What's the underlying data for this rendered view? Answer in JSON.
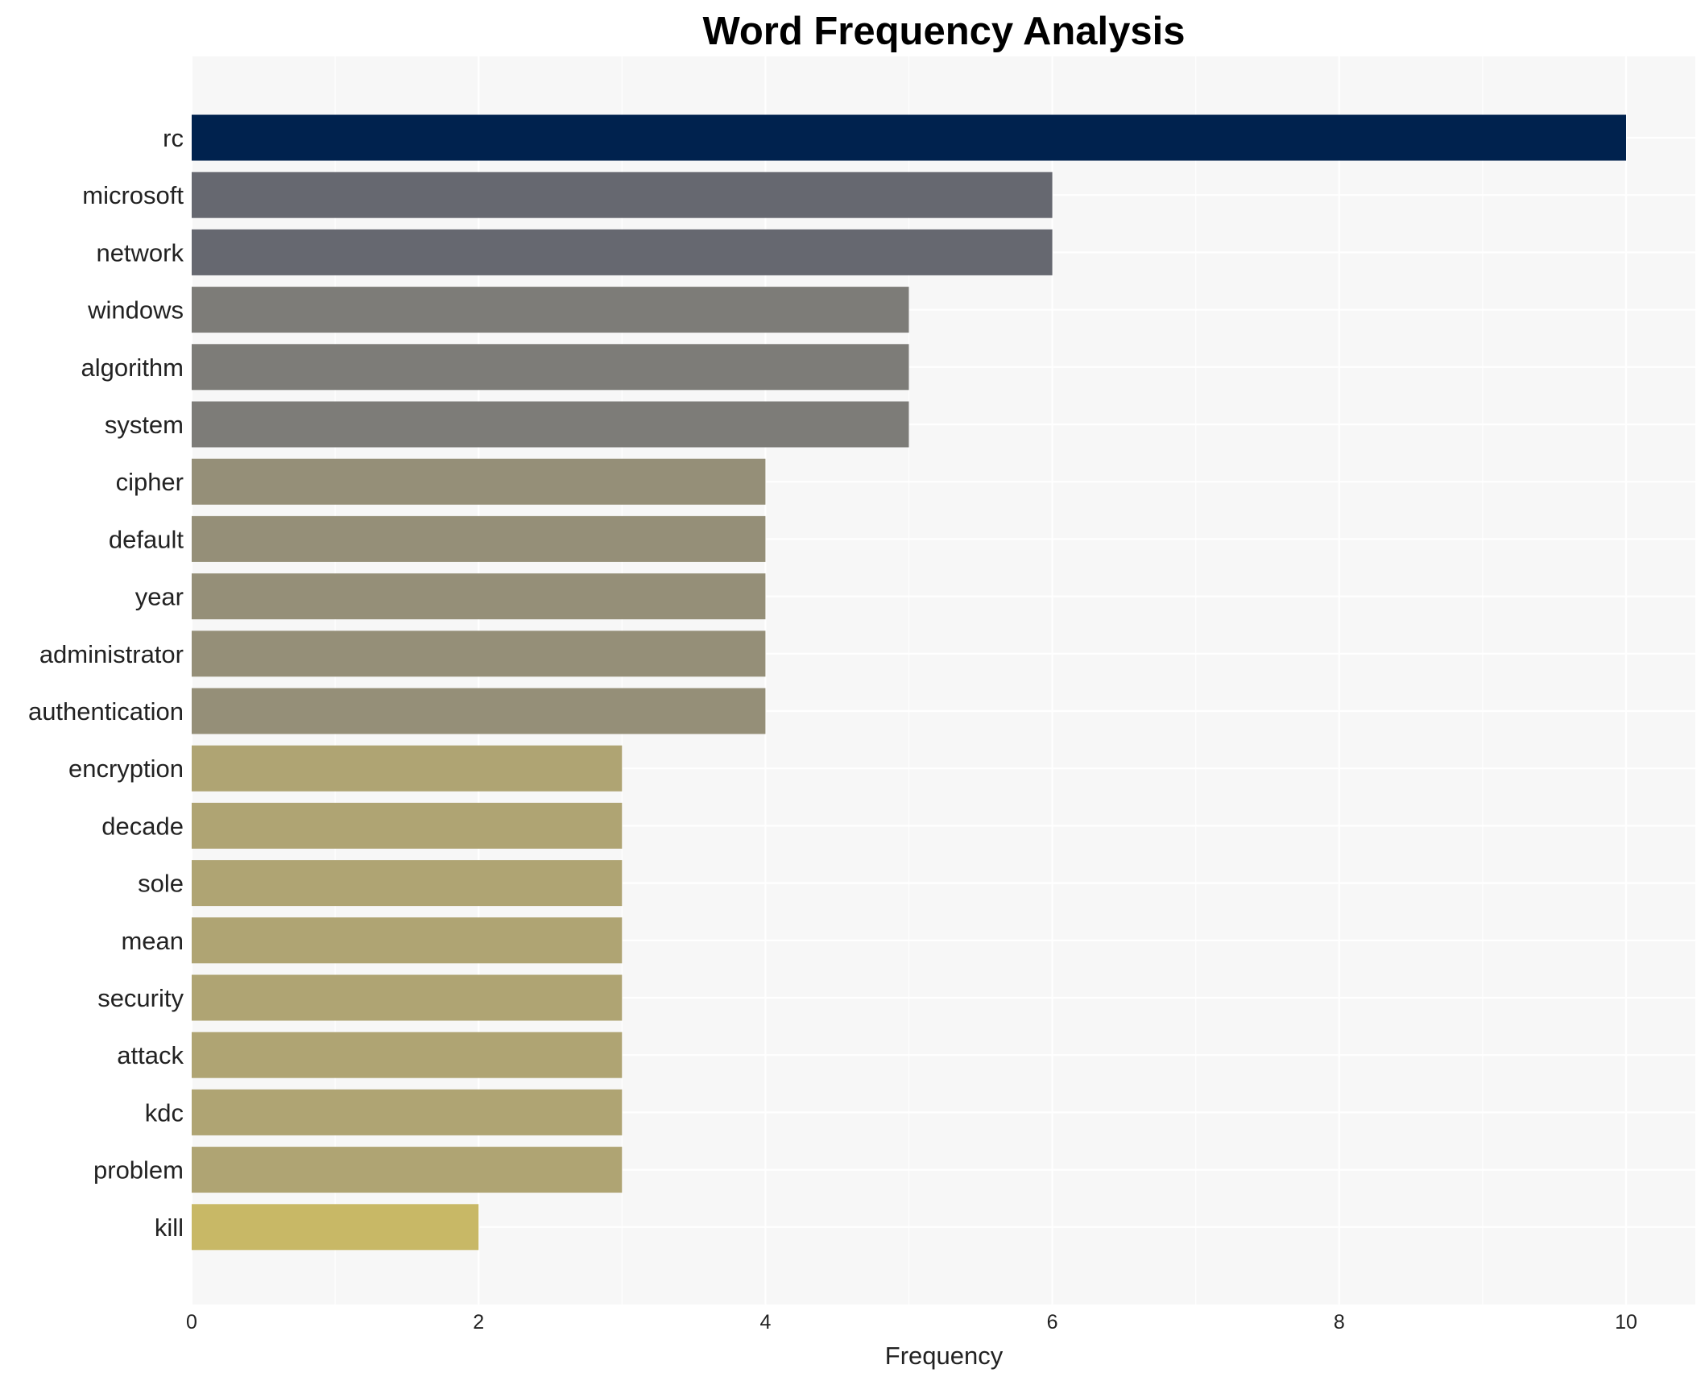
{
  "chart_data": {
    "type": "bar",
    "orientation": "horizontal",
    "title": "Word Frequency Analysis",
    "xlabel": "Frequency",
    "ylabel": "",
    "xlim": [
      0,
      10.5
    ],
    "xticks": [
      0,
      2,
      4,
      6,
      8,
      10
    ],
    "grid": true,
    "categories": [
      "rc",
      "microsoft",
      "network",
      "windows",
      "algorithm",
      "system",
      "cipher",
      "default",
      "year",
      "administrator",
      "authentication",
      "encryption",
      "decade",
      "sole",
      "mean",
      "security",
      "attack",
      "kdc",
      "problem",
      "kill"
    ],
    "values": [
      10,
      6,
      6,
      5,
      5,
      5,
      4,
      4,
      4,
      4,
      4,
      3,
      3,
      3,
      3,
      3,
      3,
      3,
      3,
      2
    ],
    "colors": [
      "#00224e",
      "#666870",
      "#666870",
      "#7d7c78",
      "#7d7c78",
      "#7d7c78",
      "#958f78",
      "#958f78",
      "#958f78",
      "#958f78",
      "#958f78",
      "#afa473",
      "#afa473",
      "#afa473",
      "#afa473",
      "#afa473",
      "#afa473",
      "#afa473",
      "#afa473",
      "#c8b866"
    ]
  },
  "style": {
    "plot_background": "#f7f7f7",
    "grid_color": "#ffffff"
  }
}
